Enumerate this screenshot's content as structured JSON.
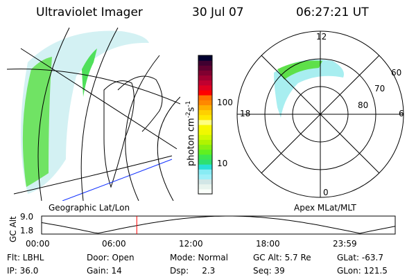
{
  "header": {
    "instrument": "Ultraviolet Imager",
    "date": "30 Jul 07",
    "time": "06:27:21 UT"
  },
  "colorbar": {
    "unit_label": "photon cm",
    "unit_sup1": "-2",
    "unit_mid": "s",
    "unit_sup2": "-1",
    "tick_labels": [
      "100",
      "10"
    ],
    "scale": "log",
    "colors": [
      "#fafffa",
      "#e8f4ee",
      "#d2e6e6",
      "#a0f0f8",
      "#88ecf4",
      "#28e0d8",
      "#2ee070",
      "#3ce850",
      "#60f020",
      "#88f010",
      "#b0f400",
      "#d0f800",
      "#f0f800",
      "#f8f800",
      "#ffff80",
      "#ffe800",
      "#ffd000",
      "#ffb000",
      "#ff8800",
      "#ff7000",
      "#ff0000",
      "#e00020",
      "#c00030",
      "#a00030",
      "#800030",
      "#600030",
      "#400030",
      "#000030"
    ]
  },
  "left_map": {
    "label": "Geographic Lat/Lon"
  },
  "right_map": {
    "label": "Apex MLat/MLT",
    "mlt_labels": [
      "12",
      "18",
      "6",
      "0"
    ],
    "mlat_labels": [
      "60",
      "70",
      "80"
    ]
  },
  "altitude_strip": {
    "ylabel": "GC Alt",
    "y_ticks": [
      "9.0",
      "1.8"
    ],
    "x_ticks": [
      "00:00",
      "06:00",
      "12:00",
      "18:00",
      "23:59"
    ],
    "current_time_marker_hours": 6.46,
    "series_color": "#000000",
    "marker_color": "#ff0000"
  },
  "status": {
    "row1": [
      "Flt: LBHL",
      "Door: Open",
      "Mode: Normal",
      "GC Alt: 5.7 Re",
      "GLat: -63.7"
    ],
    "row2": [
      "IP: 36.0",
      "Gain: 14",
      "Dsp:     2.3",
      "Seq: 39",
      "GLon: 121.5"
    ]
  }
}
